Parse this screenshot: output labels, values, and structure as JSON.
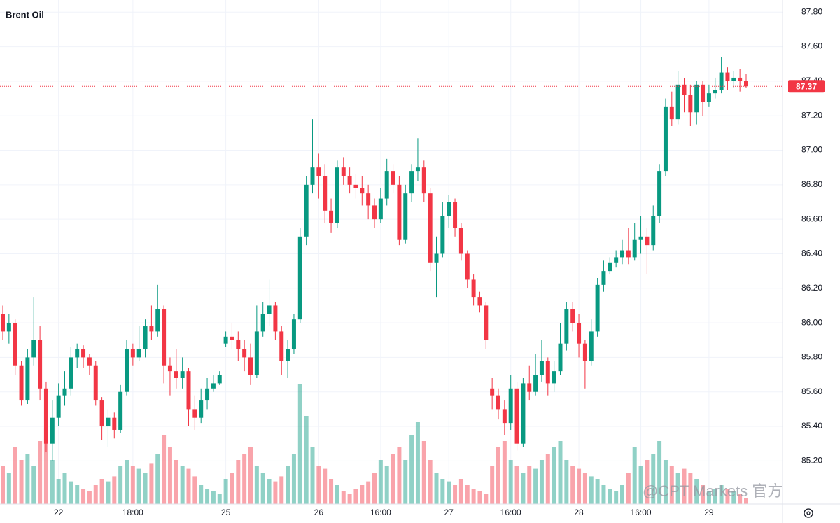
{
  "chart_data": {
    "type": "candlestick",
    "title": "Brent Oil",
    "watermark": "@CPT Markets 官方",
    "up_color": "#089981",
    "down_color": "#f23645",
    "grid": true,
    "ylim": [
      84.95,
      87.87
    ],
    "yticks": [
      {
        "value": 85.2,
        "label": "85.20"
      },
      {
        "value": 85.4,
        "label": "85.40"
      },
      {
        "value": 85.6,
        "label": "85.60"
      },
      {
        "value": 85.8,
        "label": "85.80"
      },
      {
        "value": 86.0,
        "label": "86.00"
      },
      {
        "value": 86.2,
        "label": "86.20"
      },
      {
        "value": 86.4,
        "label": "86.40"
      },
      {
        "value": 86.6,
        "label": "86.60"
      },
      {
        "value": 86.8,
        "label": "86.80"
      },
      {
        "value": 87.0,
        "label": "87.00"
      },
      {
        "value": 87.2,
        "label": "87.20"
      },
      {
        "value": 87.4,
        "label": "87.40"
      },
      {
        "value": 87.6,
        "label": "87.60"
      },
      {
        "value": 87.8,
        "label": "87.80"
      }
    ],
    "last_price": 87.37,
    "categories": [
      null,
      null,
      null,
      null,
      null,
      null,
      null,
      null,
      null,
      "22",
      null,
      null,
      null,
      null,
      null,
      null,
      null,
      null,
      null,
      null,
      null,
      "18:00",
      null,
      null,
      null,
      null,
      null,
      null,
      null,
      null,
      null,
      null,
      null,
      null,
      null,
      null,
      "25",
      null,
      null,
      null,
      null,
      null,
      null,
      null,
      null,
      null,
      null,
      null,
      null,
      null,
      null,
      "26",
      null,
      null,
      null,
      null,
      null,
      null,
      null,
      null,
      null,
      "16:00",
      null,
      null,
      null,
      null,
      null,
      null,
      null,
      null,
      null,
      null,
      "27",
      null,
      null,
      null,
      null,
      null,
      null,
      null,
      null,
      null,
      "16:00",
      null,
      null,
      null,
      null,
      null,
      null,
      null,
      null,
      null,
      null,
      "28",
      null,
      null,
      null,
      null,
      null,
      null,
      null,
      null,
      null,
      "16:00",
      null,
      null,
      null,
      null,
      null,
      null,
      null,
      null,
      null,
      null,
      "29",
      null,
      null,
      null,
      null,
      null,
      null
    ],
    "open": [
      86.05,
      85.95,
      86.0,
      85.75,
      85.55,
      85.8,
      85.9,
      85.62,
      85.3,
      85.45,
      85.58,
      85.62,
      85.8,
      85.85,
      85.8,
      85.75,
      85.55,
      85.4,
      85.45,
      85.38,
      85.6,
      85.85,
      85.8,
      85.85,
      85.98,
      85.95,
      86.08,
      85.75,
      85.72,
      85.68,
      85.72,
      85.5,
      85.45,
      85.55,
      85.62,
      85.65,
      85.88,
      85.92,
      85.9,
      85.85,
      85.8,
      85.7,
      85.95,
      86.05,
      86.1,
      85.95,
      85.78,
      85.85,
      86.02,
      86.5,
      86.8,
      86.9,
      86.85,
      86.65,
      86.58,
      86.9,
      86.85,
      86.8,
      86.78,
      86.75,
      86.68,
      86.6,
      86.72,
      86.88,
      86.8,
      86.48,
      86.75,
      86.88,
      86.9,
      86.75,
      86.35,
      86.4,
      86.62,
      86.7,
      86.55,
      86.4,
      86.25,
      86.15,
      86.1,
      85.62,
      85.58,
      85.5,
      85.42,
      85.62,
      85.3,
      85.65,
      85.6,
      85.7,
      85.78,
      85.65,
      85.72,
      85.88,
      86.08,
      86.0,
      85.88,
      85.78,
      85.95,
      86.22,
      86.3,
      86.35,
      86.38,
      86.42,
      86.38,
      86.48,
      86.5,
      86.45,
      86.62,
      86.88,
      87.25,
      87.18,
      87.38,
      87.32,
      87.22,
      87.38,
      87.28,
      87.33,
      87.35,
      87.45,
      87.4,
      87.42,
      87.4
    ],
    "high": [
      86.1,
      86.05,
      86.02,
      85.78,
      85.85,
      86.15,
      85.98,
      85.66,
      85.55,
      85.65,
      85.72,
      85.86,
      85.88,
      85.87,
      85.82,
      85.78,
      85.57,
      85.5,
      85.48,
      85.64,
      85.9,
      85.88,
      85.98,
      86.02,
      86.1,
      86.22,
      86.1,
      85.8,
      85.85,
      85.8,
      85.74,
      85.58,
      85.62,
      85.68,
      85.7,
      85.72,
      85.95,
      86.0,
      85.95,
      85.9,
      85.88,
      86.1,
      86.12,
      86.25,
      86.12,
      85.98,
      85.9,
      86.05,
      86.55,
      86.85,
      87.18,
      86.98,
      86.92,
      86.72,
      86.94,
      86.96,
      86.9,
      86.86,
      86.85,
      86.8,
      86.72,
      86.78,
      86.95,
      86.92,
      86.85,
      86.8,
      86.92,
      87.07,
      86.94,
      86.78,
      86.5,
      86.7,
      86.74,
      86.72,
      86.58,
      86.42,
      86.28,
      86.18,
      86.12,
      85.68,
      85.62,
      85.55,
      85.7,
      85.66,
      85.68,
      85.75,
      85.82,
      85.9,
      85.8,
      85.78,
      86.0,
      86.12,
      86.12,
      86.05,
      85.9,
      86.02,
      86.26,
      86.36,
      86.38,
      86.42,
      86.48,
      86.55,
      86.58,
      86.62,
      86.55,
      86.68,
      86.92,
      87.3,
      87.34,
      87.46,
      87.42,
      87.38,
      87.4,
      87.4,
      87.38,
      87.42,
      87.54,
      87.48,
      87.46,
      87.47,
      87.44
    ],
    "low": [
      85.9,
      85.88,
      85.7,
      85.52,
      85.53,
      85.75,
      85.55,
      85.25,
      85.2,
      85.4,
      85.52,
      85.58,
      85.74,
      85.74,
      85.7,
      85.52,
      85.32,
      85.28,
      85.33,
      85.36,
      85.58,
      85.75,
      85.78,
      85.8,
      85.9,
      85.92,
      85.65,
      85.58,
      85.62,
      85.62,
      85.4,
      85.38,
      85.42,
      85.5,
      85.6,
      85.64,
      85.86,
      85.85,
      85.78,
      85.72,
      85.64,
      85.68,
      85.92,
      85.98,
      85.9,
      85.7,
      85.68,
      85.82,
      86.0,
      86.45,
      86.75,
      86.72,
      86.58,
      86.52,
      86.55,
      86.8,
      86.75,
      86.72,
      86.68,
      86.6,
      86.55,
      86.58,
      86.68,
      86.75,
      86.45,
      86.46,
      86.7,
      86.82,
      86.7,
      86.3,
      86.15,
      86.38,
      86.55,
      86.5,
      86.36,
      86.2,
      86.1,
      86.06,
      85.85,
      85.5,
      85.44,
      85.35,
      85.38,
      85.26,
      85.28,
      85.55,
      85.58,
      85.66,
      85.58,
      85.6,
      85.7,
      85.84,
      85.95,
      85.8,
      85.62,
      85.75,
      85.92,
      86.18,
      86.28,
      86.32,
      86.34,
      86.34,
      86.36,
      86.4,
      86.28,
      86.42,
      86.58,
      86.85,
      87.14,
      87.15,
      87.22,
      87.14,
      87.15,
      87.2,
      87.25,
      87.3,
      87.33,
      87.35,
      87.36,
      87.34,
      87.36
    ],
    "close": [
      85.95,
      86.0,
      85.75,
      85.55,
      85.8,
      85.9,
      85.62,
      85.3,
      85.45,
      85.58,
      85.62,
      85.8,
      85.85,
      85.8,
      85.75,
      85.55,
      85.4,
      85.45,
      85.38,
      85.6,
      85.85,
      85.8,
      85.85,
      85.98,
      85.95,
      86.08,
      85.75,
      85.72,
      85.68,
      85.72,
      85.5,
      85.45,
      85.55,
      85.62,
      85.65,
      85.7,
      85.92,
      85.9,
      85.85,
      85.8,
      85.7,
      85.95,
      86.05,
      86.1,
      85.95,
      85.78,
      85.85,
      86.02,
      86.5,
      86.8,
      86.9,
      86.85,
      86.65,
      86.58,
      86.9,
      86.85,
      86.8,
      86.78,
      86.75,
      86.68,
      86.6,
      86.72,
      86.88,
      86.8,
      86.48,
      86.75,
      86.88,
      86.9,
      86.75,
      86.35,
      86.4,
      86.62,
      86.7,
      86.55,
      86.4,
      86.25,
      86.15,
      86.1,
      85.9,
      85.58,
      85.5,
      85.42,
      85.62,
      85.3,
      85.65,
      85.6,
      85.7,
      85.78,
      85.65,
      85.72,
      85.88,
      86.08,
      86.0,
      85.88,
      85.78,
      85.95,
      86.22,
      86.3,
      86.35,
      86.38,
      86.42,
      86.38,
      86.48,
      86.5,
      86.45,
      86.62,
      86.88,
      87.25,
      87.18,
      87.38,
      87.32,
      87.22,
      87.38,
      87.28,
      87.33,
      87.35,
      87.45,
      87.4,
      87.42,
      87.4,
      87.37
    ],
    "volume_ylim": [
      0,
      400
    ],
    "volume": [
      30,
      25,
      45,
      35,
      40,
      30,
      50,
      60,
      35,
      20,
      25,
      18,
      15,
      12,
      10,
      15,
      20,
      18,
      22,
      30,
      35,
      30,
      28,
      25,
      32,
      40,
      55,
      45,
      35,
      30,
      28,
      22,
      15,
      12,
      10,
      8,
      20,
      25,
      35,
      40,
      45,
      30,
      25,
      20,
      18,
      22,
      30,
      40,
      95,
      70,
      45,
      30,
      28,
      20,
      15,
      10,
      8,
      12,
      15,
      18,
      25,
      35,
      30,
      40,
      45,
      35,
      55,
      65,
      50,
      35,
      25,
      20,
      18,
      15,
      20,
      15,
      12,
      10,
      8,
      30,
      45,
      50,
      35,
      30,
      25,
      30,
      28,
      35,
      40,
      45,
      50,
      35,
      30,
      28,
      25,
      22,
      20,
      15,
      12,
      10,
      15,
      25,
      45,
      30,
      35,
      40,
      50,
      35,
      30,
      25,
      28,
      25,
      20,
      15,
      10,
      12,
      15,
      12,
      10,
      8,
      5
    ]
  }
}
